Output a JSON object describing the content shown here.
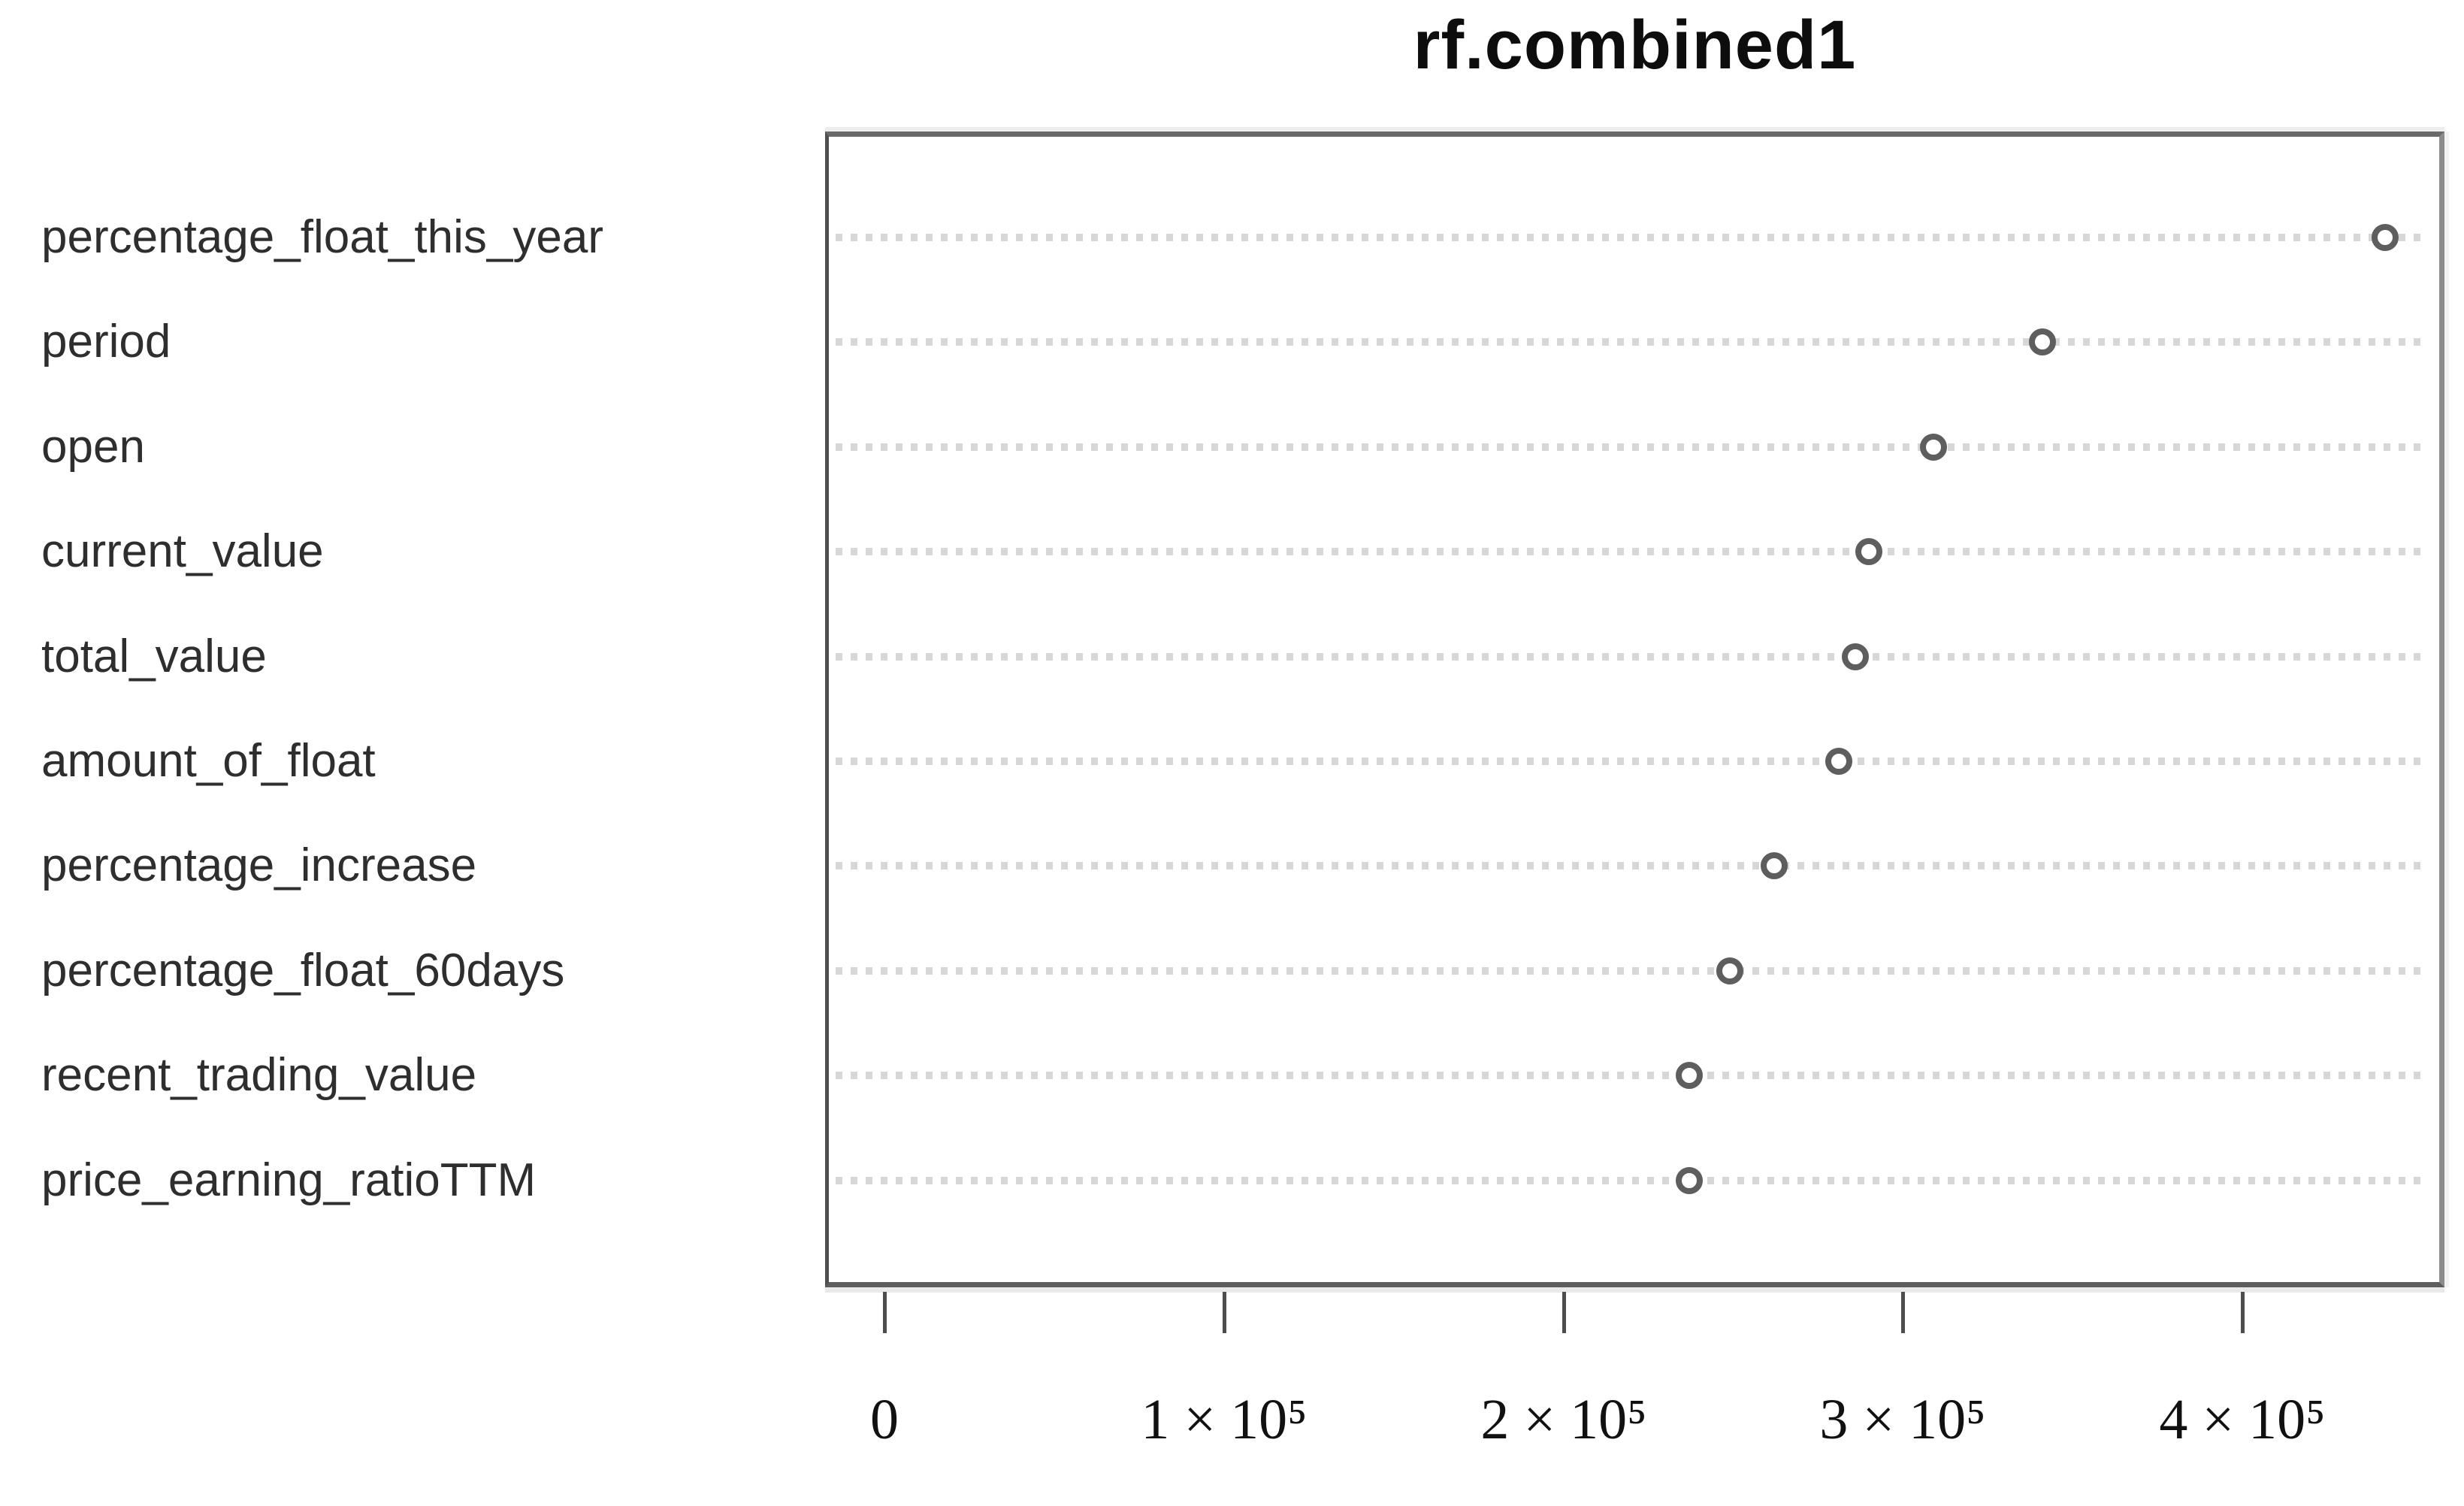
{
  "chart_data": {
    "type": "scatter",
    "subtype": "dotchart",
    "title": "rf.combined1",
    "categories": [
      "percentage_float_this_year",
      "period",
      "open",
      "current_value",
      "total_value",
      "amount_of_float",
      "percentage_increase",
      "percentage_float_60days",
      "recent_trading_value",
      "price_earning_ratioTTM"
    ],
    "values": [
      442000,
      341000,
      309000,
      290000,
      286000,
      281000,
      262000,
      249000,
      237000,
      237000
    ],
    "xlabel": "",
    "ylabel": "",
    "xlim": [
      -17500,
      459500
    ],
    "xticks": [
      {
        "value": 0,
        "label": "0"
      },
      {
        "value": 100000,
        "label": "1 × 10⁵"
      },
      {
        "value": 200000,
        "label": "2 × 10⁵"
      },
      {
        "value": 300000,
        "label": "3 × 10⁵"
      },
      {
        "value": 400000,
        "label": "4 × 10⁵"
      }
    ],
    "grid": "dotted-horizontal-per-category",
    "legend": "none",
    "point_marker": "open-circle",
    "colors": {
      "point_stroke": "#5e5e5e",
      "grid_dots": "#d7d7d7",
      "box_border": "#6a6a6a",
      "label_text": "#2e2e2e",
      "title_text": "#0d0d0d",
      "background": "#ffffff"
    }
  }
}
